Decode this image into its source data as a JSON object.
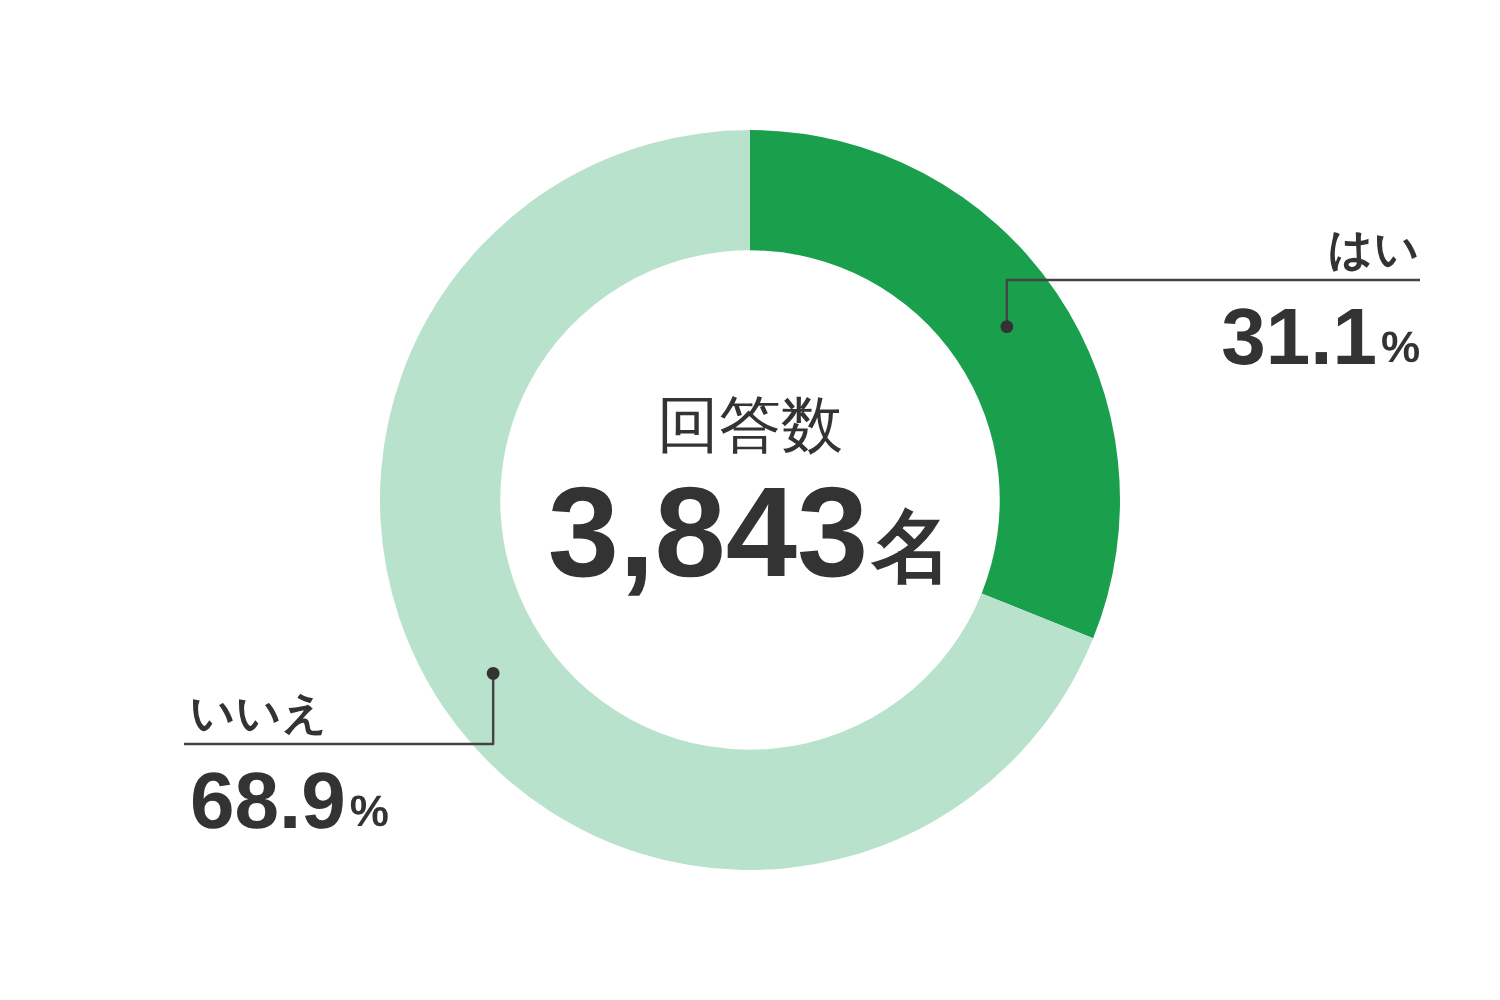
{
  "chart_data": {
    "type": "donut",
    "categories": [
      "はい",
      "いいえ"
    ],
    "values": [
      31.1,
      68.9
    ],
    "colors": [
      "#1aa04c",
      "#b8e2cc"
    ],
    "value_labels": [
      "31.1%",
      "68.9%"
    ],
    "annotations": [
      "回答数",
      "3,843名"
    ],
    "legend": false
  }
}
